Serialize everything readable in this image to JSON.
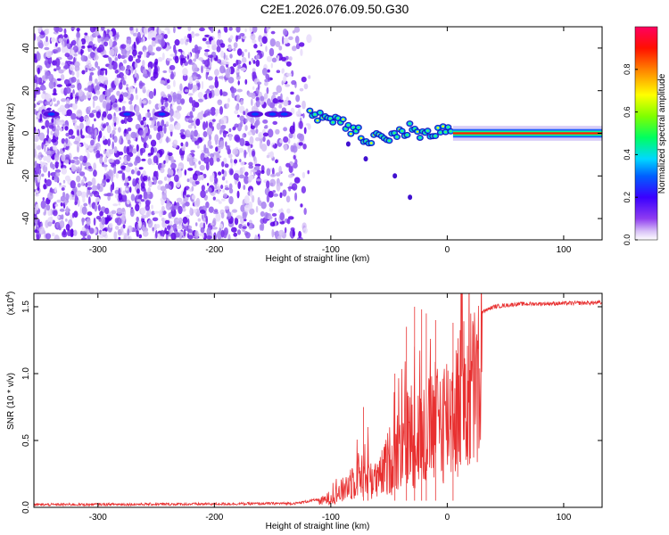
{
  "page_title": "C2E1.2026.076.09.50.G30",
  "chart_data": [
    {
      "type": "heatmap",
      "title": "C2E1.2026.076.09.50.G30",
      "xlabel": "Height of straight line (km)",
      "ylabel": "Frequency (Hz)",
      "xlim": [
        -355,
        133
      ],
      "ylim": [
        -50,
        50
      ],
      "xticks": [
        -300,
        -200,
        -100,
        0,
        100
      ],
      "yticks": [
        -40,
        -20,
        0,
        20,
        40
      ],
      "noise_region_km": [
        -355,
        -118
      ],
      "carrier_center_hz": [
        {
          "x": -175,
          "y": 9
        },
        {
          "x": -150,
          "y": 9
        },
        {
          "x": -125,
          "y": 9
        },
        {
          "x": -110,
          "y": 7
        },
        {
          "x": -100,
          "y": 6
        },
        {
          "x": -90,
          "y": 4
        },
        {
          "x": -80,
          "y": 1
        },
        {
          "x": -70,
          "y": -2
        },
        {
          "x": -60,
          "y": -3
        },
        {
          "x": -50,
          "y": -2
        },
        {
          "x": -40,
          "y": 0
        },
        {
          "x": -30,
          "y": 2
        },
        {
          "x": -20,
          "y": 0
        },
        {
          "x": -10,
          "y": 1
        },
        {
          "x": 0,
          "y": 2
        },
        {
          "x": 10,
          "y": 0
        },
        {
          "x": 133,
          "y": 0
        }
      ],
      "colorbar": {
        "label": "Normalized spectral amplitude",
        "range": [
          0,
          1
        ],
        "ticks": [
          "0.0",
          "0.2",
          "0.4",
          "0.6",
          "0.8"
        ],
        "tick_values": [
          0,
          0.2,
          0.4,
          0.6,
          0.8
        ],
        "colors": [
          "#ffffff",
          "#dcc8f5",
          "#9b5cf0",
          "#5a00e8",
          "#0000ff",
          "#00c8ff",
          "#00ff80",
          "#7fff00",
          "#ffff00",
          "#ff8000",
          "#ff0000",
          "#ff0040"
        ]
      }
    },
    {
      "type": "line",
      "xlabel": "Height of straight line (km)",
      "ylabel": "SNR (10 * v/v)",
      "y_multiplier": "(x10",
      "y_multiplier_exp": "4",
      "xlim": [
        -355,
        133
      ],
      "ylim": [
        0,
        1.6
      ],
      "xticks": [
        -300,
        -200,
        -100,
        0,
        100
      ],
      "yticks": [
        "0.0",
        "0.5",
        "1.0",
        "1.5"
      ],
      "ytick_values": [
        0,
        0.5,
        1.0,
        1.5
      ],
      "line_color": "#e83030",
      "envelope": [
        {
          "x": -355,
          "y": 0.02
        },
        {
          "x": -200,
          "y": 0.025
        },
        {
          "x": -130,
          "y": 0.03
        },
        {
          "x": -110,
          "y": 0.06
        },
        {
          "x": -100,
          "y": 0.12
        },
        {
          "x": -90,
          "y": 0.2
        },
        {
          "x": -80,
          "y": 0.35
        },
        {
          "x": -70,
          "y": 0.45
        },
        {
          "x": -60,
          "y": 0.3
        },
        {
          "x": -50,
          "y": 0.55
        },
        {
          "x": -40,
          "y": 0.75
        },
        {
          "x": -30,
          "y": 0.9
        },
        {
          "x": -20,
          "y": 0.85
        },
        {
          "x": -10,
          "y": 1.0
        },
        {
          "x": 0,
          "y": 1.1
        },
        {
          "x": 10,
          "y": 1.25
        },
        {
          "x": 20,
          "y": 1.38
        },
        {
          "x": 30,
          "y": 1.46
        },
        {
          "x": 40,
          "y": 1.5
        },
        {
          "x": 60,
          "y": 1.52
        },
        {
          "x": 133,
          "y": 1.53
        }
      ],
      "spikes": [
        {
          "x": -72,
          "y": 0.75
        },
        {
          "x": -68,
          "y": 0.6
        },
        {
          "x": -45,
          "y": 1.0
        },
        {
          "x": -35,
          "y": 1.35
        },
        {
          "x": -28,
          "y": 1.5
        },
        {
          "x": -22,
          "y": 1.48
        },
        {
          "x": -18,
          "y": 1.45
        },
        {
          "x": -10,
          "y": 1.4
        },
        {
          "x": 5,
          "y": 1.38
        }
      ]
    }
  ]
}
